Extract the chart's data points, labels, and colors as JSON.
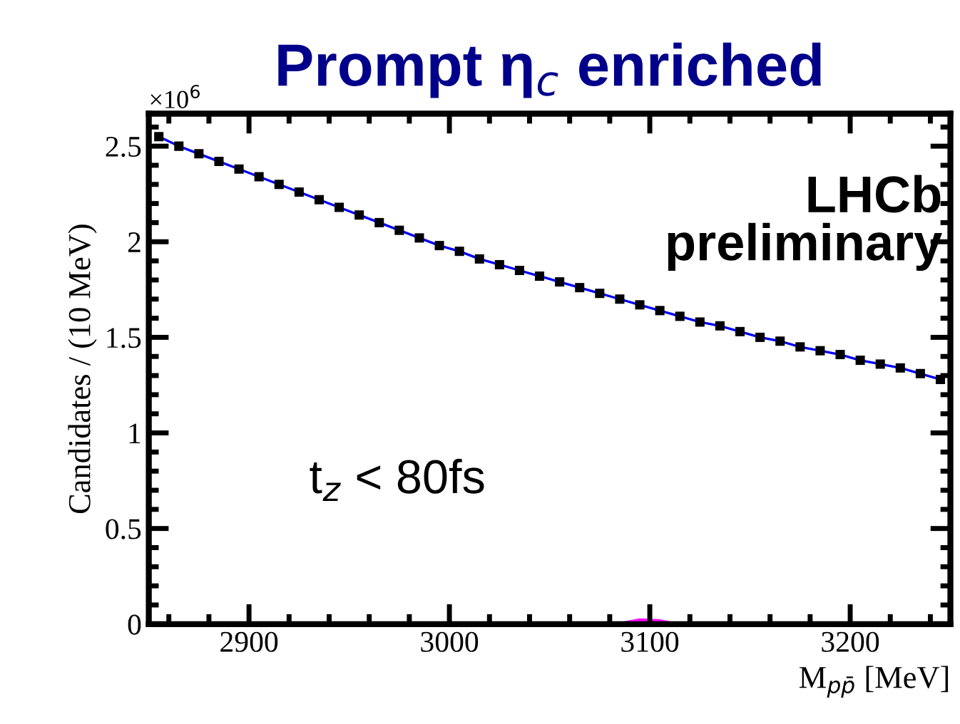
{
  "chart_data": {
    "type": "scatter",
    "title": "Prompt η$_{c}$ enriched",
    "xlabel": "M$_{pp̄}$ [MeV]",
    "ylabel": "Candidates / (10 MeV)",
    "annotations": [
      "LHCb\npreliminary",
      "t$_{z}$ < 80fs",
      "×10$^{6}$"
    ],
    "x": [
      2855,
      2865,
      2875,
      2885,
      2895,
      2905,
      2915,
      2925,
      2935,
      2945,
      2955,
      2965,
      2975,
      2985,
      2995,
      3005,
      3015,
      3025,
      3035,
      3045,
      3055,
      3065,
      3075,
      3085,
      3095,
      3105,
      3115,
      3125,
      3135,
      3145,
      3155,
      3165,
      3175,
      3185,
      3195,
      3205,
      3215,
      3225,
      3235,
      3245
    ],
    "series": [
      {
        "color": "#000000",
        "marker": "square",
        "values": [
          2.55,
          2.5,
          2.46,
          2.42,
          2.38,
          2.34,
          2.3,
          2.26,
          2.22,
          2.18,
          2.14,
          2.1,
          2.06,
          2.02,
          1.98,
          1.95,
          1.91,
          1.88,
          1.85,
          1.82,
          1.79,
          1.76,
          1.73,
          1.7,
          1.67,
          1.64,
          1.61,
          1.58,
          1.56,
          1.53,
          1.5,
          1.48,
          1.45,
          1.43,
          1.41,
          1.38,
          1.36,
          1.34,
          1.31,
          1.28
        ]
      },
      {
        "type": "line",
        "color": "#0000ff",
        "values": [
          2.55,
          2.5,
          2.46,
          2.42,
          2.38,
          2.34,
          2.3,
          2.26,
          2.22,
          2.18,
          2.14,
          2.1,
          2.06,
          2.02,
          1.98,
          1.95,
          1.91,
          1.88,
          1.85,
          1.82,
          1.79,
          1.76,
          1.73,
          1.7,
          1.67,
          1.64,
          1.61,
          1.58,
          1.56,
          1.53,
          1.5,
          1.48,
          1.45,
          1.43,
          1.41,
          1.38,
          1.36,
          1.34,
          1.31,
          1.28
        ]
      },
      {
        "type": "area",
        "color": "#ff00ff",
        "values": [
          0,
          0,
          0,
          0,
          0,
          0,
          0,
          0,
          0,
          0,
          0,
          0.005,
          0.01,
          0.012,
          0.012,
          0.01,
          0.005,
          0,
          0,
          0,
          0,
          0,
          0,
          0.01,
          0.03,
          0.025,
          0.005,
          0,
          0,
          0,
          0,
          0,
          0,
          0,
          0,
          0,
          0,
          0,
          0,
          0
        ]
      }
    ],
    "xlim": [
      2850,
      3250
    ],
    "xticks": [
      2900,
      3000,
      3100,
      3200
    ],
    "ylim": [
      0,
      2.67
    ],
    "yticks": [
      0,
      0.5,
      1,
      1.5,
      2,
      2.5
    ],
    "grid": false,
    "legend": false
  }
}
